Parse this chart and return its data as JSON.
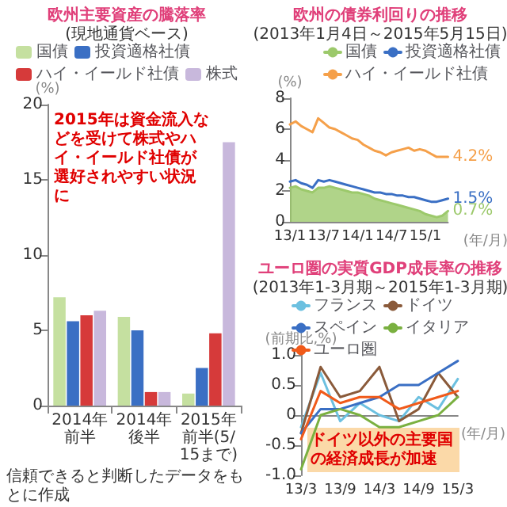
{
  "chart_data": [
    {
      "type": "bar",
      "title": "欧州主要資産の騰落率",
      "subtitle": "(現地通貨ベース)",
      "ylabel": "(%)",
      "categories": [
        "2014年前半",
        "2014年後半",
        "2015年前半(5/15まで)"
      ],
      "ylim": [
        0,
        20
      ],
      "yticks": [
        0,
        5,
        10,
        15,
        20
      ],
      "legend": "top",
      "series": [
        {
          "name": "国債",
          "color": "#c5e0a0",
          "values": [
            7.2,
            5.9,
            0.8
          ]
        },
        {
          "name": "投資適格社債",
          "color": "#3a6fc4",
          "values": [
            5.6,
            5.0,
            2.5
          ]
        },
        {
          "name": "ハイ・イールド社債",
          "color": "#d63a3a",
          "values": [
            6.0,
            0.9,
            4.8
          ]
        },
        {
          "name": "株式",
          "color": "#c8b8dc",
          "values": [
            6.3,
            0.9,
            17.5
          ]
        }
      ],
      "annotations": [
        "2015年は資金流入などを受けて株式やハイ・イールド社債が選好されやすい状況に",
        "信頼できると判断したデータをもとに作成"
      ]
    },
    {
      "type": "line",
      "title": "欧州の債券利回りの推移",
      "subtitle": "(2013年1月4日～2015年5月15日)",
      "ylabel": "(%)",
      "xlabel": "(年/月)",
      "categories": [
        "13/1",
        null,
        null,
        null,
        null,
        null,
        "13/7",
        null,
        null,
        null,
        null,
        null,
        "14/1",
        null,
        null,
        null,
        null,
        null,
        "14/7",
        null,
        null,
        null,
        null,
        null,
        "15/1",
        null,
        null,
        null,
        null
      ],
      "ylim": [
        0,
        8
      ],
      "yticks": [
        0,
        2,
        4,
        6,
        8
      ],
      "legend": "top right",
      "marker": "none",
      "series": [
        {
          "name": "国債",
          "type": "area",
          "color": "#9cc96b",
          "values": [
            2.2,
            2.3,
            2.1,
            2.0,
            1.9,
            2.2,
            2.2,
            2.3,
            2.2,
            2.1,
            2.0,
            1.9,
            1.9,
            1.8,
            1.7,
            1.5,
            1.4,
            1.3,
            1.2,
            1.1,
            1.0,
            0.9,
            0.8,
            0.7,
            0.5,
            0.4,
            0.3,
            0.4,
            0.7
          ],
          "value_labels": [
            null,
            null,
            null,
            null,
            null,
            null,
            null,
            null,
            null,
            null,
            null,
            null,
            null,
            null,
            null,
            null,
            null,
            null,
            null,
            null,
            null,
            null,
            null,
            null,
            null,
            null,
            null,
            null,
            "0.7%"
          ]
        },
        {
          "name": "投資適格社債",
          "color": "#3a6fc4",
          "values": [
            2.6,
            2.7,
            2.5,
            2.4,
            2.2,
            2.7,
            2.6,
            2.7,
            2.6,
            2.5,
            2.4,
            2.3,
            2.2,
            2.1,
            2.0,
            1.9,
            1.9,
            1.8,
            1.8,
            1.7,
            1.7,
            1.6,
            1.6,
            1.5,
            1.4,
            1.3,
            1.3,
            1.4,
            1.5
          ],
          "value_labels": [
            null,
            null,
            null,
            null,
            null,
            null,
            null,
            null,
            null,
            null,
            null,
            null,
            null,
            null,
            null,
            null,
            null,
            null,
            null,
            null,
            null,
            null,
            null,
            null,
            null,
            null,
            null,
            null,
            "1.5%"
          ]
        },
        {
          "name": "ハイ・イールド社債",
          "color": "#f5a04a",
          "values": [
            6.3,
            6.5,
            6.2,
            6.0,
            5.8,
            6.7,
            6.4,
            6.1,
            6.0,
            5.8,
            5.6,
            5.4,
            5.3,
            5.0,
            4.8,
            4.6,
            4.5,
            4.3,
            4.5,
            4.6,
            4.7,
            4.8,
            4.6,
            4.7,
            4.6,
            4.4,
            4.2,
            4.2,
            4.2
          ],
          "value_labels": [
            null,
            null,
            null,
            null,
            null,
            null,
            null,
            null,
            null,
            null,
            null,
            null,
            null,
            null,
            null,
            null,
            null,
            null,
            null,
            null,
            null,
            null,
            null,
            null,
            null,
            null,
            null,
            null,
            "4.2%"
          ]
        }
      ]
    },
    {
      "type": "line",
      "title": "ユーロ圏の実質GDP成長率の推移",
      "subtitle": "(2013年1-3月期～2015年1-3月期)",
      "ylabel": "(前期比,%)",
      "xlabel": "(年/月)",
      "categories": [
        "13/3",
        null,
        "13/9",
        null,
        "14/3",
        null,
        "14/9",
        null,
        "15/3"
      ],
      "ylim": [
        -1,
        1
      ],
      "yticks": [
        {
          "value": -1,
          "label": "-1.0"
        },
        -0.5,
        0,
        0.5,
        {
          "value": 1,
          "label": "1.0"
        }
      ],
      "legend": "top",
      "marker": "none",
      "series": [
        {
          "name": "フランス",
          "color": "#6cc0e0",
          "values": [
            -0.2,
            0.7,
            -0.1,
            0.2,
            0.0,
            -0.1,
            0.3,
            0.1,
            0.6
          ]
        },
        {
          "name": "ドイツ",
          "color": "#8a5a3a",
          "values": [
            -0.3,
            0.8,
            0.3,
            0.4,
            0.8,
            -0.1,
            0.1,
            0.7,
            0.3
          ]
        },
        {
          "name": "スペイン",
          "color": "#3a6fc4",
          "values": [
            -0.3,
            0.1,
            0.1,
            0.2,
            0.3,
            0.5,
            0.5,
            0.7,
            0.9
          ]
        },
        {
          "name": "イタリア",
          "color": "#7ab040",
          "values": [
            -0.9,
            0.0,
            0.1,
            0.0,
            -0.2,
            -0.2,
            -0.1,
            0.0,
            0.3
          ]
        },
        {
          "name": "ユーロ圏",
          "color": "#f05a1a",
          "values": [
            -0.4,
            0.4,
            0.2,
            0.3,
            0.3,
            0.1,
            0.2,
            0.3,
            0.4
          ]
        }
      ],
      "annotations": [
        "ドイツ以外の主要国の経済成長が加速"
      ]
    }
  ]
}
